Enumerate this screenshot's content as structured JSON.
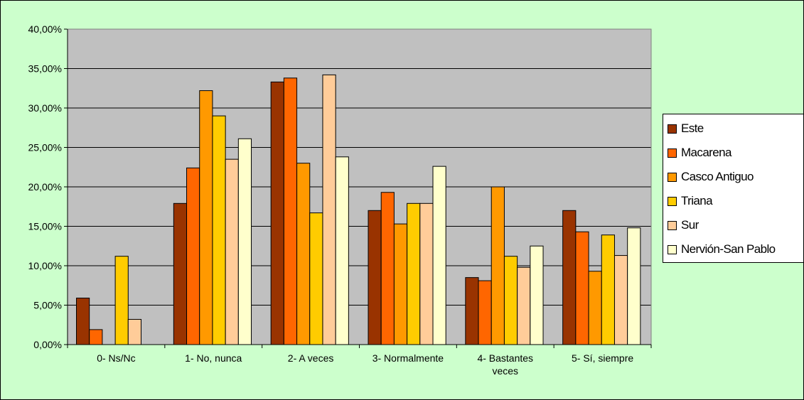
{
  "chart_data": {
    "type": "bar",
    "categories": [
      "0- Ns/Nc",
      "1- No, nunca",
      "2- A veces",
      "3- Normalmente",
      "4- Bastantes veces",
      "5- Sí, siempre"
    ],
    "category_lines": [
      [
        "0- Ns/Nc"
      ],
      [
        "1- No, nunca"
      ],
      [
        "2- A veces"
      ],
      [
        "3- Normalmente"
      ],
      [
        "4- Bastantes",
        "veces"
      ],
      [
        "5- Sí, siempre"
      ]
    ],
    "series": [
      {
        "name": "Este",
        "color": "#993300",
        "values": [
          5.9,
          17.9,
          33.3,
          17.0,
          8.5,
          17.0
        ]
      },
      {
        "name": "Macarena",
        "color": "#ff6600",
        "values": [
          1.9,
          22.4,
          33.8,
          19.3,
          8.1,
          14.3
        ]
      },
      {
        "name": "Casco Antiguo",
        "color": "#ff9900",
        "values": [
          0.0,
          32.2,
          23.0,
          15.3,
          20.0,
          9.3
        ]
      },
      {
        "name": "Triana",
        "color": "#ffcc00",
        "values": [
          11.2,
          29.0,
          16.7,
          17.9,
          11.2,
          13.9
        ]
      },
      {
        "name": "Sur",
        "color": "#ffcc99",
        "values": [
          3.2,
          23.5,
          34.2,
          17.9,
          9.8,
          11.3
        ]
      },
      {
        "name": "Nervión-San Pablo",
        "color": "#ffffcc",
        "values": [
          0.0,
          26.1,
          23.8,
          22.6,
          12.5,
          14.8
        ]
      }
    ],
    "y_ticks": [
      "0,00%",
      "5,00%",
      "10,00%",
      "15,00%",
      "20,00%",
      "25,00%",
      "30,00%",
      "35,00%",
      "40,00%"
    ],
    "ylim": [
      0,
      40
    ],
    "y_unit": "%",
    "grid": true,
    "plot_background": "#c0c0c0",
    "chart_background": "#ccffcc",
    "legend_position": "right",
    "title": "",
    "xlabel": "",
    "ylabel": ""
  }
}
